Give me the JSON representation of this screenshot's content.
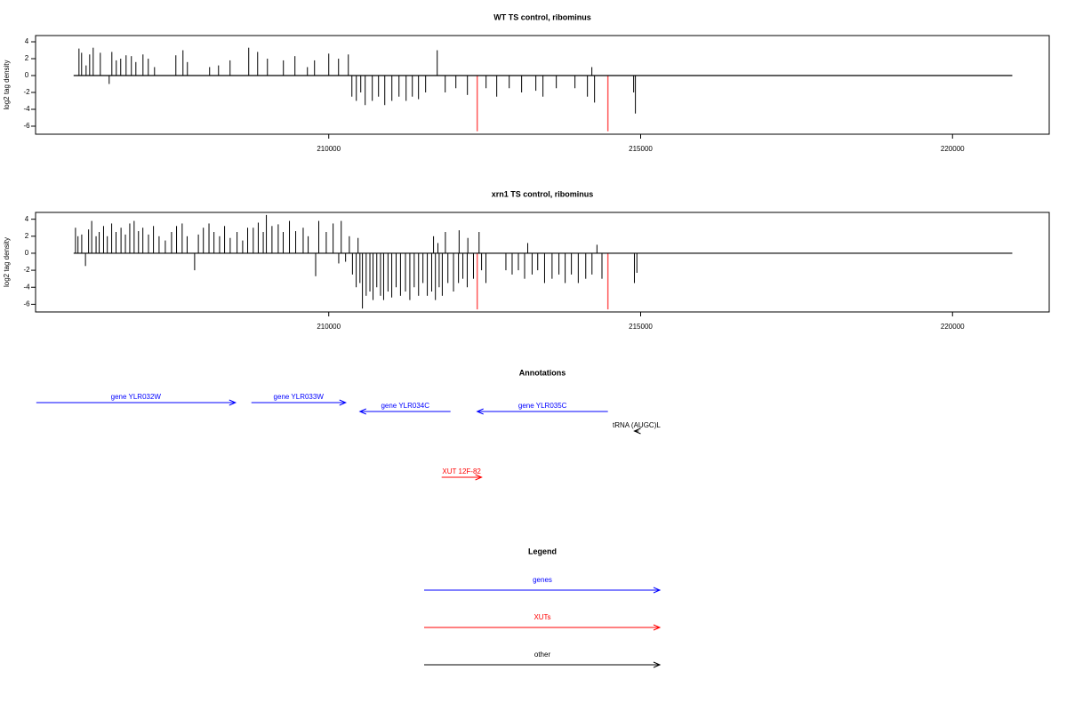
{
  "chart_data": [
    {
      "type": "spike",
      "title": "WT TS control, ribominus",
      "ylabel": "log2 tag density",
      "color": "#000000",
      "highlight_color": "#ff5a5a",
      "region": [
        205910,
        220958
      ],
      "x": [
        205996,
        206038,
        206110,
        206167,
        206224,
        206338,
        206480,
        206523,
        206594,
        206665,
        206751,
        206836,
        206908,
        207022,
        207107,
        207207,
        207549,
        207663,
        207734,
        208090,
        208233,
        208418,
        208717,
        208860,
        209017,
        209273,
        209458,
        209658,
        209772,
        210000,
        210157,
        210314,
        210371,
        210442,
        210513,
        210584,
        210698,
        210798,
        210898,
        211012,
        211126,
        211240,
        211340,
        211439,
        211553,
        211739,
        211867,
        212038,
        212223,
        212522,
        212693,
        212893,
        213092,
        213320,
        213434,
        213648,
        213947,
        214147,
        214218,
        214261,
        214888,
        214916
      ],
      "values": [
        3.2,
        2.7,
        1.2,
        2.5,
        3.3,
        2.7,
        -1.0,
        2.8,
        1.8,
        2.0,
        2.4,
        2.3,
        1.6,
        2.5,
        2.0,
        1.0,
        2.4,
        3.0,
        1.6,
        1.0,
        1.2,
        1.8,
        3.3,
        2.8,
        2.0,
        1.8,
        2.3,
        1.0,
        1.8,
        2.6,
        2.0,
        2.5,
        -2.5,
        -3.0,
        -2.0,
        -3.5,
        -3.0,
        -2.5,
        -3.5,
        -3.0,
        -2.5,
        -3.0,
        -2.5,
        -2.8,
        -2.0,
        3.0,
        -2.0,
        -1.5,
        -2.3,
        -1.5,
        -2.5,
        -1.5,
        -2.0,
        -1.8,
        -2.5,
        -1.5,
        -1.5,
        -2.5,
        1.0,
        -3.2,
        -2.0,
        -4.5
      ],
      "highlight_x": [
        212380,
        214475
      ],
      "highlight_values": [
        -6.6,
        -6.6
      ],
      "xlim": [
        205300,
        221550
      ],
      "ylim": [
        -6.95,
        4.74
      ],
      "xticks": [
        210000,
        215000,
        220000
      ],
      "yticks": [
        -6,
        -4,
        -2,
        0,
        2,
        4
      ]
    },
    {
      "type": "spike",
      "title": "xrn1 TS control, ribominus",
      "ylabel": "log2 tag density",
      "color": "#000000",
      "highlight_color": "#ff5a5a",
      "region": [
        205910,
        220958
      ],
      "x": [
        205940,
        205980,
        206040,
        206100,
        206150,
        206200,
        206270,
        206320,
        206390,
        206450,
        206520,
        206590,
        206670,
        206740,
        206810,
        206880,
        206950,
        207020,
        207110,
        207190,
        207280,
        207380,
        207480,
        207560,
        207650,
        207730,
        207850,
        207910,
        207990,
        208080,
        208160,
        208250,
        208330,
        208420,
        208530,
        208620,
        208700,
        208790,
        208870,
        208950,
        209000,
        209090,
        209190,
        209270,
        209370,
        209470,
        209590,
        209670,
        209790,
        209840,
        209960,
        210070,
        210160,
        210200,
        210270,
        210330,
        210380,
        210440,
        210470,
        210500,
        210540,
        210600,
        210660,
        210710,
        210770,
        210830,
        210880,
        210950,
        211010,
        211080,
        211150,
        211230,
        211300,
        211370,
        211440,
        211510,
        211580,
        211650,
        211680,
        211710,
        211750,
        211770,
        211820,
        211870,
        211910,
        212000,
        212080,
        212090,
        212150,
        212220,
        212230,
        212320,
        212410,
        212450,
        212520,
        212840,
        212940,
        213040,
        213140,
        213190,
        213260,
        213350,
        213460,
        213580,
        213690,
        213790,
        213890,
        214000,
        214120,
        214220,
        214300,
        214380,
        214900,
        214940
      ],
      "values": [
        3.0,
        2.0,
        2.2,
        -1.5,
        2.8,
        3.8,
        2.0,
        2.5,
        3.2,
        2.0,
        3.5,
        2.5,
        3.0,
        2.2,
        3.5,
        3.8,
        2.6,
        3.0,
        2.2,
        3.2,
        2.0,
        1.5,
        2.5,
        3.2,
        3.5,
        2.0,
        -2.0,
        2.2,
        3.0,
        3.5,
        2.5,
        2.0,
        3.2,
        1.8,
        2.5,
        1.5,
        3.0,
        3.0,
        3.6,
        2.5,
        4.5,
        3.2,
        3.4,
        2.5,
        3.8,
        2.6,
        3.0,
        2.0,
        -2.7,
        3.8,
        2.5,
        3.5,
        -1.2,
        3.8,
        -1.0,
        2.0,
        -2.5,
        -4.0,
        1.8,
        -3.5,
        -6.5,
        -5.0,
        -4.5,
        -5.5,
        -4.0,
        -5.0,
        -5.5,
        -4.5,
        -5.2,
        -4.0,
        -5.0,
        -4.5,
        -5.5,
        -4.0,
        -5.0,
        -3.5,
        -5.0,
        -4.5,
        2.0,
        -5.5,
        1.2,
        -4.0,
        -5.0,
        2.5,
        -3.5,
        -4.5,
        -3.5,
        2.7,
        -3.0,
        -4.0,
        1.8,
        -3.0,
        2.5,
        -2.0,
        -3.5,
        -2.0,
        -2.5,
        -2.0,
        -3.0,
        1.2,
        -2.5,
        -2.0,
        -3.5,
        -3.0,
        -2.5,
        -3.5,
        -2.5,
        -3.5,
        -3.0,
        -2.5,
        1.0,
        -3.0,
        -3.5,
        -2.3
      ],
      "highlight_x": [
        212380,
        214475
      ],
      "highlight_values": [
        -6.6,
        -6.6
      ],
      "xlim": [
        205300,
        221550
      ],
      "ylim": [
        -6.9,
        4.8
      ],
      "xticks": [
        210000,
        215000,
        220000
      ],
      "yticks": [
        -6,
        -4,
        -2,
        0,
        2,
        4
      ]
    }
  ],
  "annotations": {
    "title": "Annotations",
    "features": [
      {
        "label": "gene YLR032W",
        "start": 205312,
        "end": 208504,
        "strand": "+",
        "color": "#0000ff"
      },
      {
        "label": "gene YLR033W",
        "start": 208760,
        "end": 210271,
        "strand": "+",
        "color": "#0000ff"
      },
      {
        "label": "gene YLR034C",
        "start": 210500,
        "end": 211952,
        "strand": "-",
        "color": "#0000ff"
      },
      {
        "label": "gene YLR035C",
        "start": 212380,
        "end": 214475,
        "strand": "-",
        "color": "#0000ff"
      },
      {
        "label": "tRNA (AUGC)L",
        "start": 214900,
        "end": 214970,
        "strand": "-",
        "color": "#000000"
      },
      {
        "label": "XUT 12F-82",
        "start": 211810,
        "end": 212450,
        "strand": "+",
        "color": "#ff0000"
      }
    ]
  },
  "legend": {
    "title": "Legend",
    "entries": [
      {
        "label": "genes",
        "color": "#0000ff"
      },
      {
        "label": "XUTs",
        "color": "#ff0000"
      },
      {
        "label": "other",
        "color": "#000000"
      }
    ]
  }
}
